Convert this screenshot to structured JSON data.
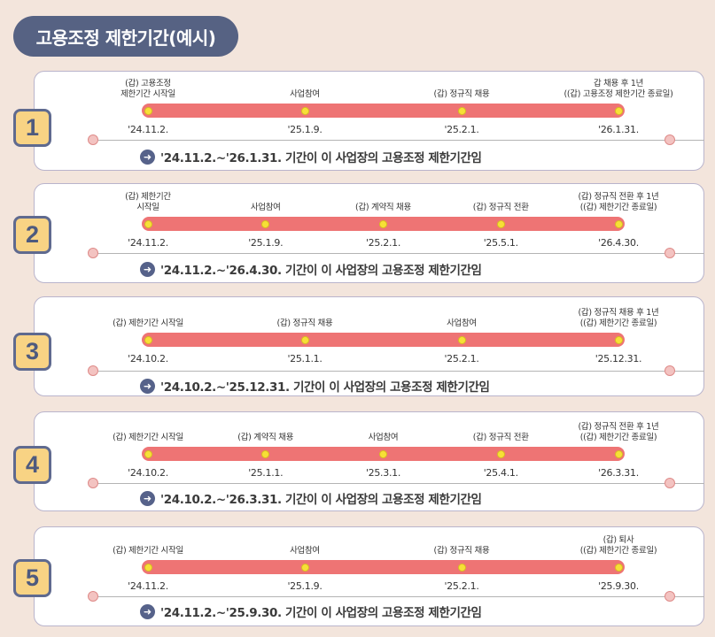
{
  "title": "고용조정 제한기간(예시)",
  "colors": {
    "title_bg": "#566283",
    "bar": "#ee7474",
    "point": "#f7e036",
    "badge": "#f8d384"
  },
  "cards": [
    {
      "number": "1",
      "events": [
        {
          "label": "(갑) 고용조정\n제한기간 시작일",
          "date": "'24.11.2."
        },
        {
          "label": "사업참여",
          "date": "'25.1.9."
        },
        {
          "label": "(갑) 정규직 채용",
          "date": "'25.2.1."
        },
        {
          "label": "갑 채용 후 1년\n((갑) 고용조정 제한기간 종료일)",
          "date": "'26.1.31."
        }
      ],
      "summary": "'24.11.2.~'26.1.31. 기간이 이 사업장의 고용조정 제한기간임"
    },
    {
      "number": "2",
      "events": [
        {
          "label": "(갑) 제한기간\n시작일",
          "date": "'24.11.2."
        },
        {
          "label": "사업참여",
          "date": "'25.1.9."
        },
        {
          "label": "(갑) 계약직 채용",
          "date": "'25.2.1."
        },
        {
          "label": "(갑) 정규직 전환",
          "date": "'25.5.1."
        },
        {
          "label": "(갑) 정규직 전환 후 1년\n((갑) 제한기간 종료일)",
          "date": "'26.4.30."
        }
      ],
      "summary": "'24.11.2.~'26.4.30. 기간이 이 사업장의 고용조정 제한기간임"
    },
    {
      "number": "3",
      "events": [
        {
          "label": "(갑) 제한기간 시작일",
          "date": "'24.10.2."
        },
        {
          "label": "(갑) 정규직 채용",
          "date": "'25.1.1."
        },
        {
          "label": "사업참여",
          "date": "'25.2.1."
        },
        {
          "label": "(갑) 정규직 채용 후 1년\n((갑) 제한기간 종료일)",
          "date": "'25.12.31."
        }
      ],
      "summary": "'24.10.2.~'25.12.31. 기간이 이 사업장의 고용조정 제한기간임"
    },
    {
      "number": "4",
      "events": [
        {
          "label": "(갑) 제한기간 시작일",
          "date": "'24.10.2."
        },
        {
          "label": "(갑) 계약직 채용",
          "date": "'25.1.1."
        },
        {
          "label": "사업참여",
          "date": "'25.3.1."
        },
        {
          "label": "(갑) 정규직 전환",
          "date": "'25.4.1."
        },
        {
          "label": "(갑) 정규직 전환 후 1년\n((갑) 제한기간 종료일)",
          "date": "'26.3.31."
        }
      ],
      "summary": "'24.10.2.~'26.3.31. 기간이 이 사업장의 고용조정 제한기간임"
    },
    {
      "number": "5",
      "events": [
        {
          "label": "(갑) 제한기간 시작일",
          "date": "'24.11.2."
        },
        {
          "label": "사업참여",
          "date": "'25.1.9."
        },
        {
          "label": "(갑) 정규직 채용",
          "date": "'25.2.1."
        },
        {
          "label": "(갑) 퇴사\n((갑) 제한기간 종료일)",
          "date": "'25.9.30."
        }
      ],
      "summary": "'24.11.2.~'25.9.30. 기간이 이 사업장의 고용조정 제한기간임"
    }
  ]
}
